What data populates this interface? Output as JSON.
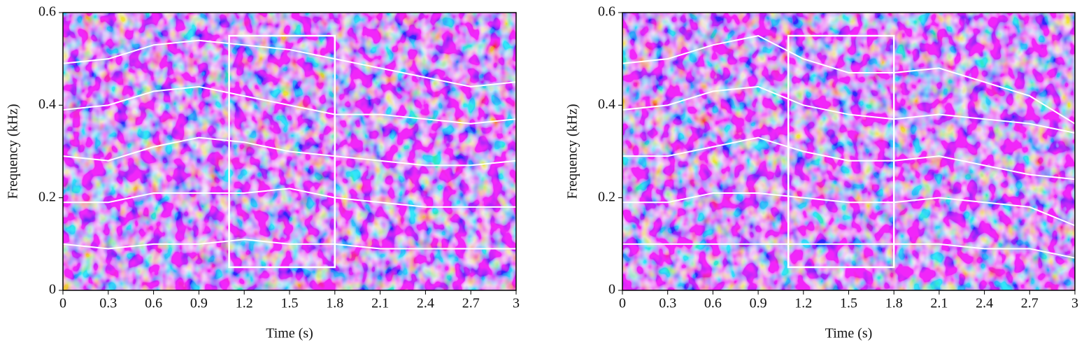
{
  "chart_data": [
    {
      "type": "line",
      "xlabel": "Time (s)",
      "ylabel": "Frequency (kHz)",
      "xlim": [
        0,
        3
      ],
      "ylim": [
        0,
        0.6
      ],
      "xticks": [
        0,
        0.3,
        0.6,
        0.9,
        1.2,
        1.5,
        1.8,
        2.1,
        2.4,
        2.7,
        3
      ],
      "yticks": [
        0,
        0.2,
        0.4,
        0.6
      ],
      "x": [
        0,
        0.3,
        0.6,
        0.9,
        1.2,
        1.5,
        1.8,
        2.1,
        2.4,
        2.7,
        3
      ],
      "series": [
        {
          "color": "#ffffff",
          "values": [
            0.49,
            0.5,
            0.53,
            0.54,
            0.53,
            0.52,
            0.5,
            0.48,
            0.46,
            0.44,
            0.45
          ]
        },
        {
          "color": "#ffffff",
          "values": [
            0.39,
            0.4,
            0.43,
            0.44,
            0.42,
            0.4,
            0.38,
            0.38,
            0.37,
            0.36,
            0.37
          ]
        },
        {
          "color": "#ffffff",
          "values": [
            0.29,
            0.28,
            0.31,
            0.33,
            0.32,
            0.3,
            0.29,
            0.28,
            0.27,
            0.27,
            0.28
          ]
        },
        {
          "color": "#ffffff",
          "values": [
            0.19,
            0.19,
            0.21,
            0.21,
            0.21,
            0.22,
            0.2,
            0.19,
            0.18,
            0.18,
            0.18
          ]
        },
        {
          "color": "#ffffff",
          "values": [
            0.1,
            0.09,
            0.1,
            0.1,
            0.11,
            0.1,
            0.1,
            0.09,
            0.09,
            0.09,
            0.09
          ]
        }
      ],
      "box": {
        "x": [
          1.1,
          1.8
        ],
        "y": [
          0.05,
          0.55
        ],
        "color": "#ffffff"
      }
    },
    {
      "type": "line",
      "xlabel": "Time (s)",
      "ylabel": "Frequency (kHz)",
      "xlim": [
        0,
        3
      ],
      "ylim": [
        0,
        0.6
      ],
      "xticks": [
        0,
        0.3,
        0.6,
        0.9,
        1.2,
        1.5,
        1.8,
        2.1,
        2.4,
        2.7,
        3
      ],
      "yticks": [
        0,
        0.2,
        0.4,
        0.6
      ],
      "x": [
        0,
        0.3,
        0.6,
        0.9,
        1.2,
        1.5,
        1.8,
        2.1,
        2.4,
        2.7,
        3
      ],
      "series": [
        {
          "color": "#ffffff",
          "values": [
            0.49,
            0.5,
            0.53,
            0.55,
            0.5,
            0.47,
            0.47,
            0.48,
            0.45,
            0.42,
            0.36
          ]
        },
        {
          "color": "#ffffff",
          "values": [
            0.39,
            0.4,
            0.43,
            0.44,
            0.4,
            0.38,
            0.37,
            0.38,
            0.37,
            0.36,
            0.34
          ]
        },
        {
          "color": "#ffffff",
          "values": [
            0.29,
            0.29,
            0.31,
            0.33,
            0.3,
            0.28,
            0.28,
            0.29,
            0.27,
            0.25,
            0.24
          ]
        },
        {
          "color": "#ffffff",
          "values": [
            0.19,
            0.19,
            0.21,
            0.21,
            0.2,
            0.19,
            0.19,
            0.2,
            0.19,
            0.18,
            0.14
          ]
        },
        {
          "color": "#ffffff",
          "values": [
            0.1,
            0.1,
            0.1,
            0.1,
            0.1,
            0.1,
            0.1,
            0.1,
            0.09,
            0.09,
            0.07
          ]
        }
      ],
      "box": {
        "x": [
          1.1,
          1.8
        ],
        "y": [
          0.05,
          0.55
        ],
        "color": "#ffffff"
      }
    }
  ]
}
